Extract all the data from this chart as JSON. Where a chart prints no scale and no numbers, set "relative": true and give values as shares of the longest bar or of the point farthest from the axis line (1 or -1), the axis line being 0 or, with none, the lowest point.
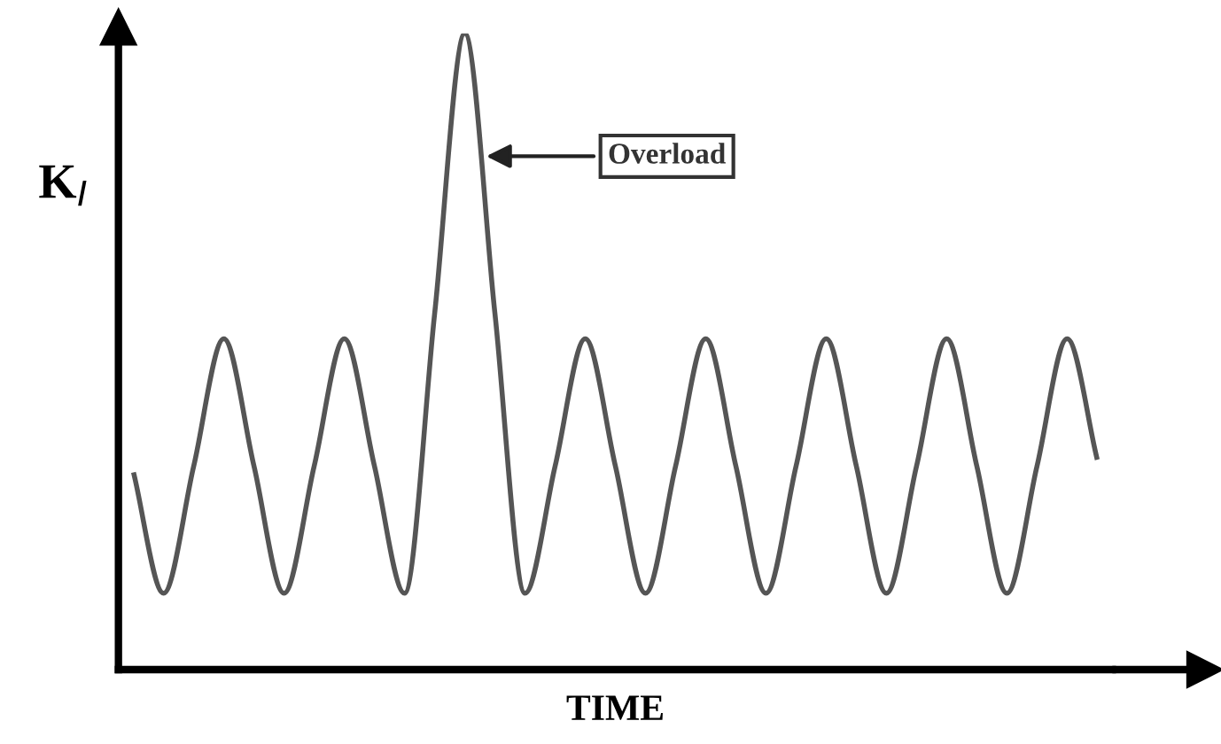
{
  "chart_data": {
    "type": "line",
    "relative": true,
    "xlabel": "TIME",
    "ylabel": "K$_{I}$",
    "categories": [
      null,
      null,
      null,
      null,
      null,
      null,
      null,
      null,
      null,
      null,
      null,
      null,
      null,
      null,
      null,
      null,
      null,
      null,
      null,
      null,
      null,
      null,
      null,
      null,
      null,
      null,
      null,
      null,
      null,
      null,
      null,
      null,
      null
    ],
    "series": [
      {
        "color": "#555555",
        "values": [
          0.31,
          0.12,
          0.32,
          0.52,
          0.32,
          0.12,
          0.32,
          0.52,
          0.32,
          0.12,
          0.56,
          1.0,
          0.56,
          0.12,
          0.32,
          0.52,
          0.32,
          0.12,
          0.32,
          0.52,
          0.32,
          0.12,
          0.32,
          0.52,
          0.32,
          0.12,
          0.32,
          0.52,
          0.32,
          0.12,
          0.32,
          0.52,
          0.33
        ]
      }
    ],
    "annotations": [
      "Overload"
    ],
    "marker": "none",
    "line_style": "solid",
    "legend": false
  }
}
